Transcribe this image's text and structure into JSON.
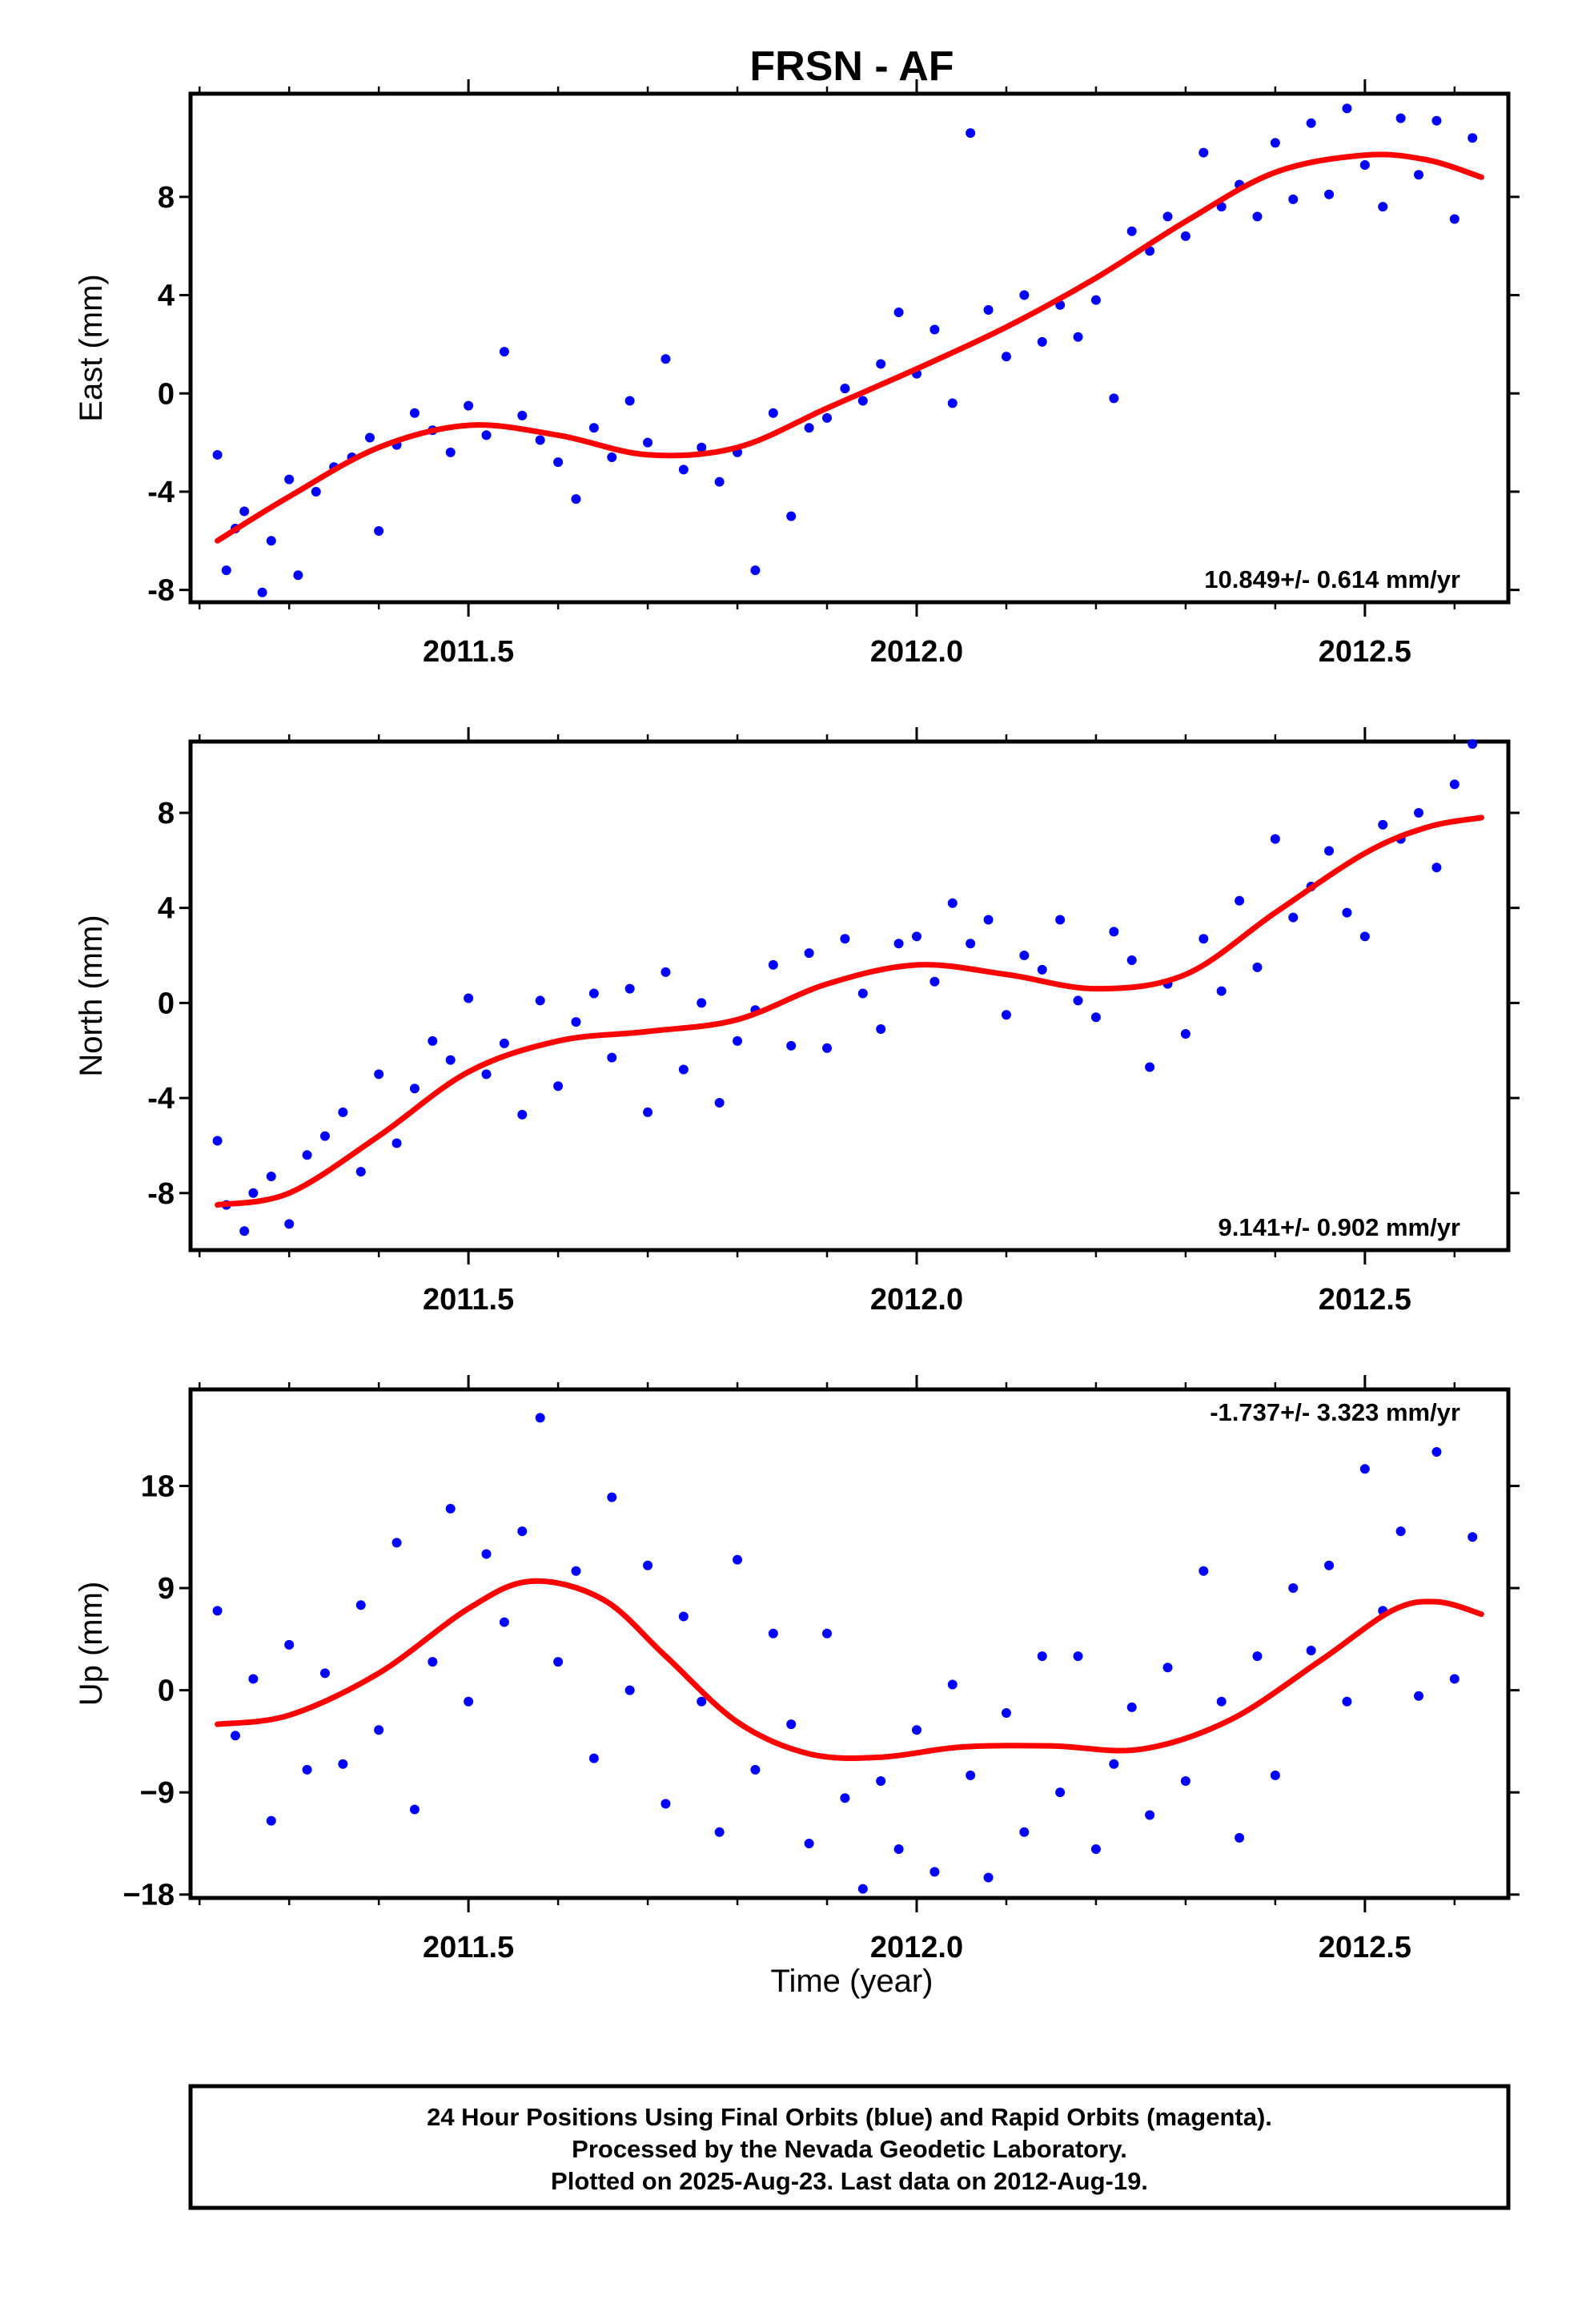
{
  "title": "FRSN - AF",
  "xlabel": "Time (year)",
  "footer": {
    "line1": "24 Hour Positions Using Final Orbits (blue) and Rapid Orbits (magenta).",
    "line2": "Processed by the Nevada Geodetic Laboratory.",
    "line3": "Plotted on 2025-Aug-23. Last data on 2012-Aug-19."
  },
  "colors": {
    "points": "#0000ff",
    "fit": "#ff0000",
    "frame": "#000000",
    "background": "#ffffff"
  },
  "chart_data": [
    {
      "type": "scatter",
      "ylabel": "East (mm)",
      "rate_label": "10.849+/- 0.614 mm/yr",
      "xlim": [
        2011.19,
        2012.66
      ],
      "ylim": [
        -8.5,
        12.2
      ],
      "xticks": [
        2011.5,
        2012.0,
        2012.5
      ],
      "xtick_labels": [
        "2011.5",
        "2012.0",
        "2012.5"
      ],
      "yticks": [
        -8,
        -4,
        0,
        4,
        8
      ],
      "ytick_labels": [
        "-8",
        "-4",
        "0",
        "4",
        "8"
      ],
      "fit": {
        "x": [
          2011.22,
          2011.3,
          2011.4,
          2011.5,
          2011.6,
          2011.7,
          2011.8,
          2011.9,
          2012.0,
          2012.1,
          2012.2,
          2012.3,
          2012.4,
          2012.5,
          2012.57,
          2012.63
        ],
        "y": [
          -6.0,
          -4.2,
          -2.2,
          -1.3,
          -1.7,
          -2.5,
          -2.2,
          -0.6,
          1.0,
          2.7,
          4.7,
          7.0,
          9.0,
          9.7,
          9.5,
          8.8
        ]
      },
      "series": [
        {
          "name": "Final Orbits",
          "color": "#0000ff",
          "x": [
            2011.22,
            2011.23,
            2011.24,
            2011.25,
            2011.27,
            2011.28,
            2011.3,
            2011.31,
            2011.33,
            2011.35,
            2011.37,
            2011.39,
            2011.4,
            2011.42,
            2011.44,
            2011.46,
            2011.48,
            2011.5,
            2011.52,
            2011.54,
            2011.56,
            2011.58,
            2011.6,
            2011.62,
            2011.64,
            2011.66,
            2011.68,
            2011.7,
            2011.72,
            2011.74,
            2011.76,
            2011.78,
            2011.8,
            2011.82,
            2011.84,
            2011.86,
            2011.88,
            2011.9,
            2011.92,
            2011.94,
            2011.96,
            2011.98,
            2012.0,
            2012.02,
            2012.04,
            2012.06,
            2012.08,
            2012.1,
            2012.12,
            2012.14,
            2012.16,
            2012.18,
            2012.2,
            2012.22,
            2012.24,
            2012.26,
            2012.28,
            2012.3,
            2012.32,
            2012.34,
            2012.36,
            2012.38,
            2012.4,
            2012.42,
            2012.44,
            2012.46,
            2012.48,
            2012.5,
            2012.52,
            2012.54,
            2012.56,
            2012.58,
            2012.6,
            2012.62
          ],
          "y": [
            -2.5,
            -7.2,
            -5.5,
            -4.8,
            -8.1,
            -6.0,
            -3.5,
            -7.4,
            -4.0,
            -3.0,
            -2.6,
            -1.8,
            -5.6,
            -2.1,
            -0.8,
            -1.5,
            -2.4,
            -0.5,
            -1.7,
            1.7,
            -0.9,
            -1.9,
            -2.8,
            -4.3,
            -1.4,
            -2.6,
            -0.3,
            -2.0,
            1.4,
            -3.1,
            -2.2,
            -3.6,
            -2.4,
            -7.2,
            -0.8,
            -5.0,
            -1.4,
            -1.0,
            0.2,
            -0.3,
            1.2,
            3.3,
            0.8,
            2.6,
            -0.4,
            10.6,
            3.4,
            1.5,
            4.0,
            2.1,
            3.6,
            2.3,
            3.8,
            -0.2,
            6.6,
            5.8,
            7.2,
            6.4,
            9.8,
            7.6,
            8.5,
            7.2,
            10.2,
            7.9,
            11.0,
            8.1,
            11.6,
            9.3,
            7.6,
            11.2,
            8.9,
            11.1,
            7.1,
            10.4
          ]
        }
      ]
    },
    {
      "type": "scatter",
      "ylabel": "North (mm)",
      "rate_label": "9.141+/- 0.902 mm/yr",
      "xlim": [
        2011.19,
        2012.66
      ],
      "ylim": [
        -10.4,
        11.0
      ],
      "xticks": [
        2011.5,
        2012.0,
        2012.5
      ],
      "xtick_labels": [
        "2011.5",
        "2012.0",
        "2012.5"
      ],
      "yticks": [
        -8,
        -4,
        0,
        4,
        8
      ],
      "yticks_labels_note": "",
      "ytick_labels": [
        "-8",
        "-4",
        "0",
        "4",
        "8"
      ],
      "fit": {
        "x": [
          2011.22,
          2011.3,
          2011.4,
          2011.5,
          2011.6,
          2011.7,
          2011.8,
          2011.9,
          2012.0,
          2012.1,
          2012.2,
          2012.3,
          2012.4,
          2012.5,
          2012.57,
          2012.63
        ],
        "y": [
          -8.5,
          -8.0,
          -5.6,
          -2.9,
          -1.6,
          -1.2,
          -0.7,
          0.8,
          1.6,
          1.2,
          0.6,
          1.2,
          3.8,
          6.3,
          7.4,
          7.8
        ]
      },
      "series": [
        {
          "name": "Final Orbits",
          "color": "#0000ff",
          "x": [
            2011.22,
            2011.23,
            2011.25,
            2011.26,
            2011.28,
            2011.3,
            2011.32,
            2011.34,
            2011.36,
            2011.38,
            2011.4,
            2011.42,
            2011.44,
            2011.46,
            2011.48,
            2011.5,
            2011.52,
            2011.54,
            2011.56,
            2011.58,
            2011.6,
            2011.62,
            2011.64,
            2011.66,
            2011.68,
            2011.7,
            2011.72,
            2011.74,
            2011.76,
            2011.78,
            2011.8,
            2011.82,
            2011.84,
            2011.86,
            2011.88,
            2011.9,
            2011.92,
            2011.94,
            2011.96,
            2011.98,
            2012.0,
            2012.02,
            2012.04,
            2012.06,
            2012.08,
            2012.1,
            2012.12,
            2012.14,
            2012.16,
            2012.18,
            2012.2,
            2012.22,
            2012.24,
            2012.26,
            2012.28,
            2012.3,
            2012.32,
            2012.34,
            2012.36,
            2012.38,
            2012.4,
            2012.42,
            2012.44,
            2012.46,
            2012.48,
            2012.5,
            2012.52,
            2012.54,
            2012.56,
            2012.58,
            2012.6,
            2012.62
          ],
          "y": [
            -5.8,
            -8.5,
            -9.6,
            -8.0,
            -7.3,
            -9.3,
            -6.4,
            -5.6,
            -4.6,
            -7.1,
            -3.0,
            -5.9,
            -3.6,
            -1.6,
            -2.4,
            0.2,
            -3.0,
            -1.7,
            -4.7,
            0.1,
            -3.5,
            -0.8,
            0.4,
            -2.3,
            0.6,
            -4.6,
            1.3,
            -2.8,
            0.0,
            -4.2,
            -1.6,
            -0.3,
            1.6,
            -1.8,
            2.1,
            -1.9,
            2.7,
            0.4,
            -1.1,
            2.5,
            2.8,
            0.9,
            4.2,
            2.5,
            3.5,
            -0.5,
            2.0,
            1.4,
            3.5,
            0.1,
            -0.6,
            3.0,
            1.8,
            -2.7,
            0.8,
            -1.3,
            2.7,
            0.5,
            4.3,
            1.5,
            6.9,
            3.6,
            4.9,
            6.4,
            3.8,
            2.8,
            7.5,
            6.9,
            8.0,
            5.7,
            9.2,
            10.9
          ]
        }
      ]
    },
    {
      "type": "scatter",
      "ylabel": "Up (mm)",
      "rate_label": "-1.737+/- 3.323 mm/yr",
      "xlim": [
        2011.19,
        2012.66
      ],
      "ylim": [
        -18.3,
        26.5
      ],
      "xticks": [
        2011.5,
        2012.0,
        2012.5
      ],
      "xtick_labels": [
        "2011.5",
        "2012.0",
        "2012.5"
      ],
      "yticks": [
        -18,
        -9,
        0,
        9,
        18
      ],
      "ytick_labels": [
        "−18",
        "−9",
        "0",
        "9",
        "18"
      ],
      "fit": {
        "x": [
          2011.22,
          2011.3,
          2011.4,
          2011.5,
          2011.57,
          2011.65,
          2011.72,
          2011.8,
          2011.88,
          2011.96,
          2012.05,
          2012.15,
          2012.25,
          2012.35,
          2012.45,
          2012.53,
          2012.58,
          2012.63
        ],
        "y": [
          -3.0,
          -2.2,
          1.5,
          7.2,
          9.6,
          8.0,
          3.0,
          -2.8,
          -5.6,
          -5.9,
          -5.0,
          -4.9,
          -5.2,
          -2.6,
          2.6,
          7.0,
          7.8,
          6.7
        ]
      },
      "series": [
        {
          "name": "Final Orbits",
          "color": "#0000ff",
          "x": [
            2011.22,
            2011.24,
            2011.26,
            2011.28,
            2011.3,
            2011.32,
            2011.34,
            2011.36,
            2011.38,
            2011.4,
            2011.42,
            2011.44,
            2011.46,
            2011.48,
            2011.5,
            2011.52,
            2011.54,
            2011.56,
            2011.58,
            2011.6,
            2011.62,
            2011.64,
            2011.66,
            2011.68,
            2011.7,
            2011.72,
            2011.74,
            2011.76,
            2011.78,
            2011.8,
            2011.82,
            2011.84,
            2011.86,
            2011.88,
            2011.9,
            2011.92,
            2011.94,
            2011.96,
            2011.98,
            2012.0,
            2012.02,
            2012.04,
            2012.06,
            2012.08,
            2012.1,
            2012.12,
            2012.14,
            2012.16,
            2012.18,
            2012.2,
            2012.22,
            2012.24,
            2012.26,
            2012.28,
            2012.3,
            2012.32,
            2012.34,
            2012.36,
            2012.38,
            2012.4,
            2012.42,
            2012.44,
            2012.46,
            2012.48,
            2012.5,
            2012.52,
            2012.54,
            2012.56,
            2012.58,
            2012.6,
            2012.62
          ],
          "y": [
            7.0,
            -4.0,
            1.0,
            -11.5,
            4.0,
            -7.0,
            1.5,
            -6.5,
            7.5,
            -3.5,
            13.0,
            -10.5,
            2.5,
            16.0,
            -1.0,
            12.0,
            6.0,
            14.0,
            24.0,
            2.5,
            10.5,
            -6.0,
            17.0,
            0.0,
            11.0,
            -10.0,
            6.5,
            -1.0,
            -12.5,
            11.5,
            -7.0,
            5.0,
            -3.0,
            -13.5,
            5.0,
            -9.5,
            -17.5,
            -8.0,
            -14.0,
            -3.5,
            -16.0,
            0.5,
            -7.5,
            -16.5,
            -2.0,
            -12.5,
            3.0,
            -9.0,
            3.0,
            -14.0,
            -6.5,
            -1.5,
            -11.0,
            2.0,
            -8.0,
            10.5,
            -1.0,
            -13.0,
            3.0,
            -7.5,
            9.0,
            3.5,
            11.0,
            -1.0,
            19.5,
            7.0,
            14.0,
            -0.5,
            21.0,
            1.0,
            13.5
          ]
        }
      ]
    }
  ]
}
